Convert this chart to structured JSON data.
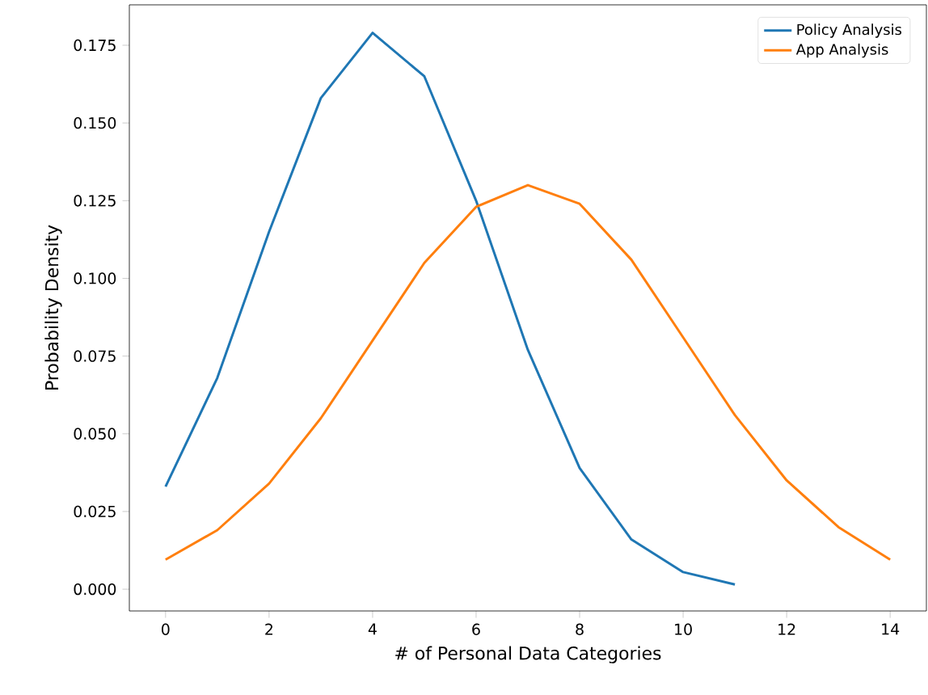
{
  "chart_data": {
    "type": "line",
    "xlabel": "# of Personal Data Categories",
    "ylabel": "Probability Density",
    "series": [
      {
        "name": "Policy Analysis",
        "color": "#1f77b4",
        "x": [
          0,
          1,
          2,
          3,
          4,
          5,
          6,
          7,
          8,
          9,
          10,
          11
        ],
        "values": [
          0.033,
          0.068,
          0.115,
          0.158,
          0.179,
          0.165,
          0.125,
          0.077,
          0.039,
          0.016,
          0.0055,
          0.0015
        ]
      },
      {
        "name": "App Analysis",
        "color": "#ff7f0e",
        "x": [
          0,
          1,
          2,
          3,
          4,
          5,
          6,
          7,
          8,
          9,
          10,
          11,
          12,
          13,
          14
        ],
        "values": [
          0.0095,
          0.019,
          0.034,
          0.055,
          0.08,
          0.105,
          0.123,
          0.13,
          0.124,
          0.106,
          0.081,
          0.056,
          0.035,
          0.02,
          0.0095
        ]
      }
    ],
    "xlim": [
      -0.7,
      14.7
    ],
    "ylim": [
      -0.007,
      0.188
    ],
    "xticks": [
      0,
      2,
      4,
      6,
      8,
      10,
      12,
      14
    ],
    "yticks": [
      {
        "value": 0,
        "label": "0.000"
      },
      {
        "value": 0.025,
        "label": "0.025"
      },
      {
        "value": 0.05,
        "label": "0.050"
      },
      {
        "value": 0.075,
        "label": "0.075"
      },
      {
        "value": 0.1,
        "label": "0.100"
      },
      {
        "value": 0.125,
        "label": "0.125"
      },
      {
        "value": 0.15,
        "label": "0.150"
      },
      {
        "value": 0.175,
        "label": "0.175"
      }
    ],
    "legend": "top right",
    "grid": false,
    "marker": "none",
    "line_style": "solid"
  }
}
